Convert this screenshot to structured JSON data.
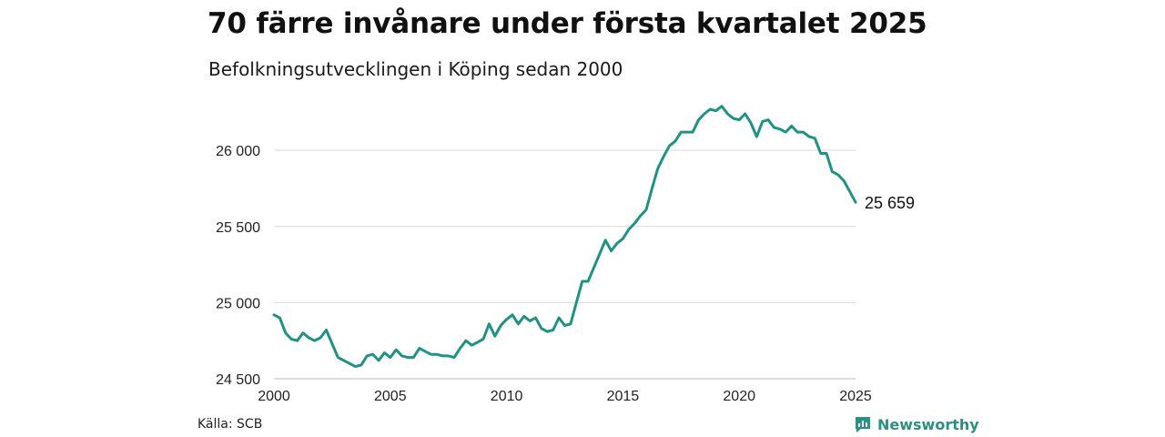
{
  "title": "70 färre invånare under första kvartalet 2025",
  "subtitle": "Befolkningsutvecklingen i Köping sedan 2000",
  "source": "Källa: SCB",
  "brand": {
    "name": "Newsworthy",
    "icon": "newsworthy-logo-icon",
    "color": "#2a8f84"
  },
  "colors": {
    "line": "#1f9383",
    "grid": "#d9d9d9"
  },
  "chart_data": {
    "type": "line",
    "title": "70 färre invånare under första kvartalet 2025",
    "subtitle": "Befolkningsutvecklingen i Köping sedan 2000",
    "xlabel": "",
    "ylabel": "",
    "xlim": [
      2000,
      2025
    ],
    "ylim": [
      24500,
      26300
    ],
    "x_ticks": [
      2000,
      2005,
      2010,
      2015,
      2020,
      2025
    ],
    "x_tick_labels": [
      "2000",
      "2005",
      "2010",
      "2015",
      "2020",
      "2025"
    ],
    "y_ticks": [
      24500,
      25000,
      25500,
      26000
    ],
    "y_tick_labels": [
      "24 500",
      "25 000",
      "25 500",
      "26 000"
    ],
    "grid": "horizontal",
    "last_value_label": "25 659",
    "series": [
      {
        "x": [
          2000.0,
          2000.25,
          2000.5,
          2000.75,
          2001.0,
          2001.25,
          2001.5,
          2001.75,
          2002.0,
          2002.25,
          2002.5,
          2002.75,
          2003.0,
          2003.25,
          2003.5,
          2003.75,
          2004.0,
          2004.25,
          2004.5,
          2004.75,
          2005.0,
          2005.25,
          2005.5,
          2005.75,
          2006.0,
          2006.25,
          2006.5,
          2006.75,
          2007.0,
          2007.25,
          2007.5,
          2007.75,
          2008.0,
          2008.25,
          2008.5,
          2008.75,
          2009.0,
          2009.25,
          2009.5,
          2009.75,
          2010.0,
          2010.25,
          2010.5,
          2010.75,
          2011.0,
          2011.25,
          2011.5,
          2011.75,
          2012.0,
          2012.25,
          2012.5,
          2012.75,
          2013.0,
          2013.25,
          2013.5,
          2013.75,
          2014.0,
          2014.25,
          2014.5,
          2014.75,
          2015.0,
          2015.25,
          2015.5,
          2015.75,
          2016.0,
          2016.25,
          2016.5,
          2016.75,
          2017.0,
          2017.25,
          2017.5,
          2017.75,
          2018.0,
          2018.25,
          2018.5,
          2018.75,
          2019.0,
          2019.25,
          2019.5,
          2019.75,
          2020.0,
          2020.25,
          2020.5,
          2020.75,
          2021.0,
          2021.25,
          2021.5,
          2021.75,
          2022.0,
          2022.25,
          2022.5,
          2022.75,
          2023.0,
          2023.25,
          2023.5,
          2023.75,
          2024.0,
          2024.25,
          2024.5,
          2024.75,
          2025.0
        ],
        "values": [
          24920,
          24900,
          24800,
          24760,
          24750,
          24800,
          24770,
          24750,
          24770,
          24820,
          24730,
          24640,
          24620,
          24600,
          24580,
          24590,
          24650,
          24660,
          24620,
          24670,
          24640,
          24690,
          24650,
          24640,
          24640,
          24700,
          24680,
          24660,
          24660,
          24650,
          24650,
          24640,
          24700,
          24750,
          24720,
          24740,
          24760,
          24860,
          24780,
          24850,
          24890,
          24920,
          24860,
          24910,
          24880,
          24900,
          24830,
          24810,
          24820,
          24900,
          24850,
          24860,
          25000,
          25140,
          25140,
          25230,
          25320,
          25410,
          25340,
          25390,
          25420,
          25480,
          25520,
          25570,
          25610,
          25750,
          25880,
          25960,
          26030,
          26060,
          26120,
          26120,
          26120,
          26200,
          26240,
          26270,
          26260,
          26290,
          26240,
          26210,
          26200,
          26240,
          26180,
          26090,
          26190,
          26200,
          26150,
          26140,
          26120,
          26160,
          26120,
          26120,
          26090,
          26080,
          25980,
          25980,
          25860,
          25840,
          25800,
          25730,
          25659
        ]
      }
    ]
  }
}
